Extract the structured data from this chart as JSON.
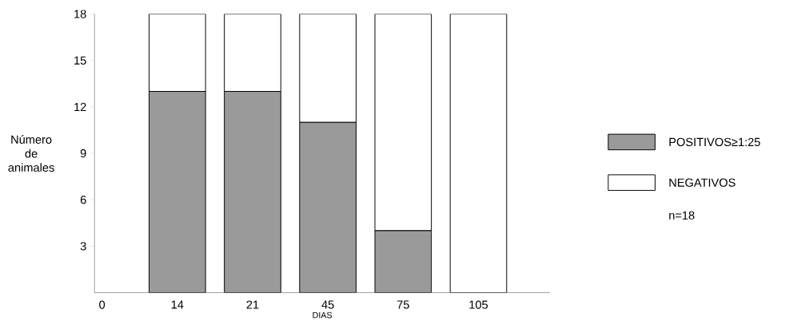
{
  "chart_data": {
    "type": "bar",
    "stacked": true,
    "xlabel": "DIAS",
    "ylabel": "Número de animales",
    "categories": [
      "0",
      "14",
      "21",
      "45",
      "75",
      "105"
    ],
    "series": [
      {
        "name": "POSITIVOS≥1:25",
        "color": "#9a9a9a",
        "values": [
          null,
          13,
          13,
          11,
          4,
          0
        ]
      },
      {
        "name": "NEGATIVOS",
        "color": "#ffffff",
        "values": [
          null,
          5,
          5,
          7,
          14,
          18
        ]
      }
    ],
    "ylim": [
      0,
      18
    ],
    "yticks": [
      3,
      6,
      9,
      12,
      15,
      18
    ],
    "legend": "right",
    "grid": false,
    "annotations": [
      "n=18"
    ]
  }
}
